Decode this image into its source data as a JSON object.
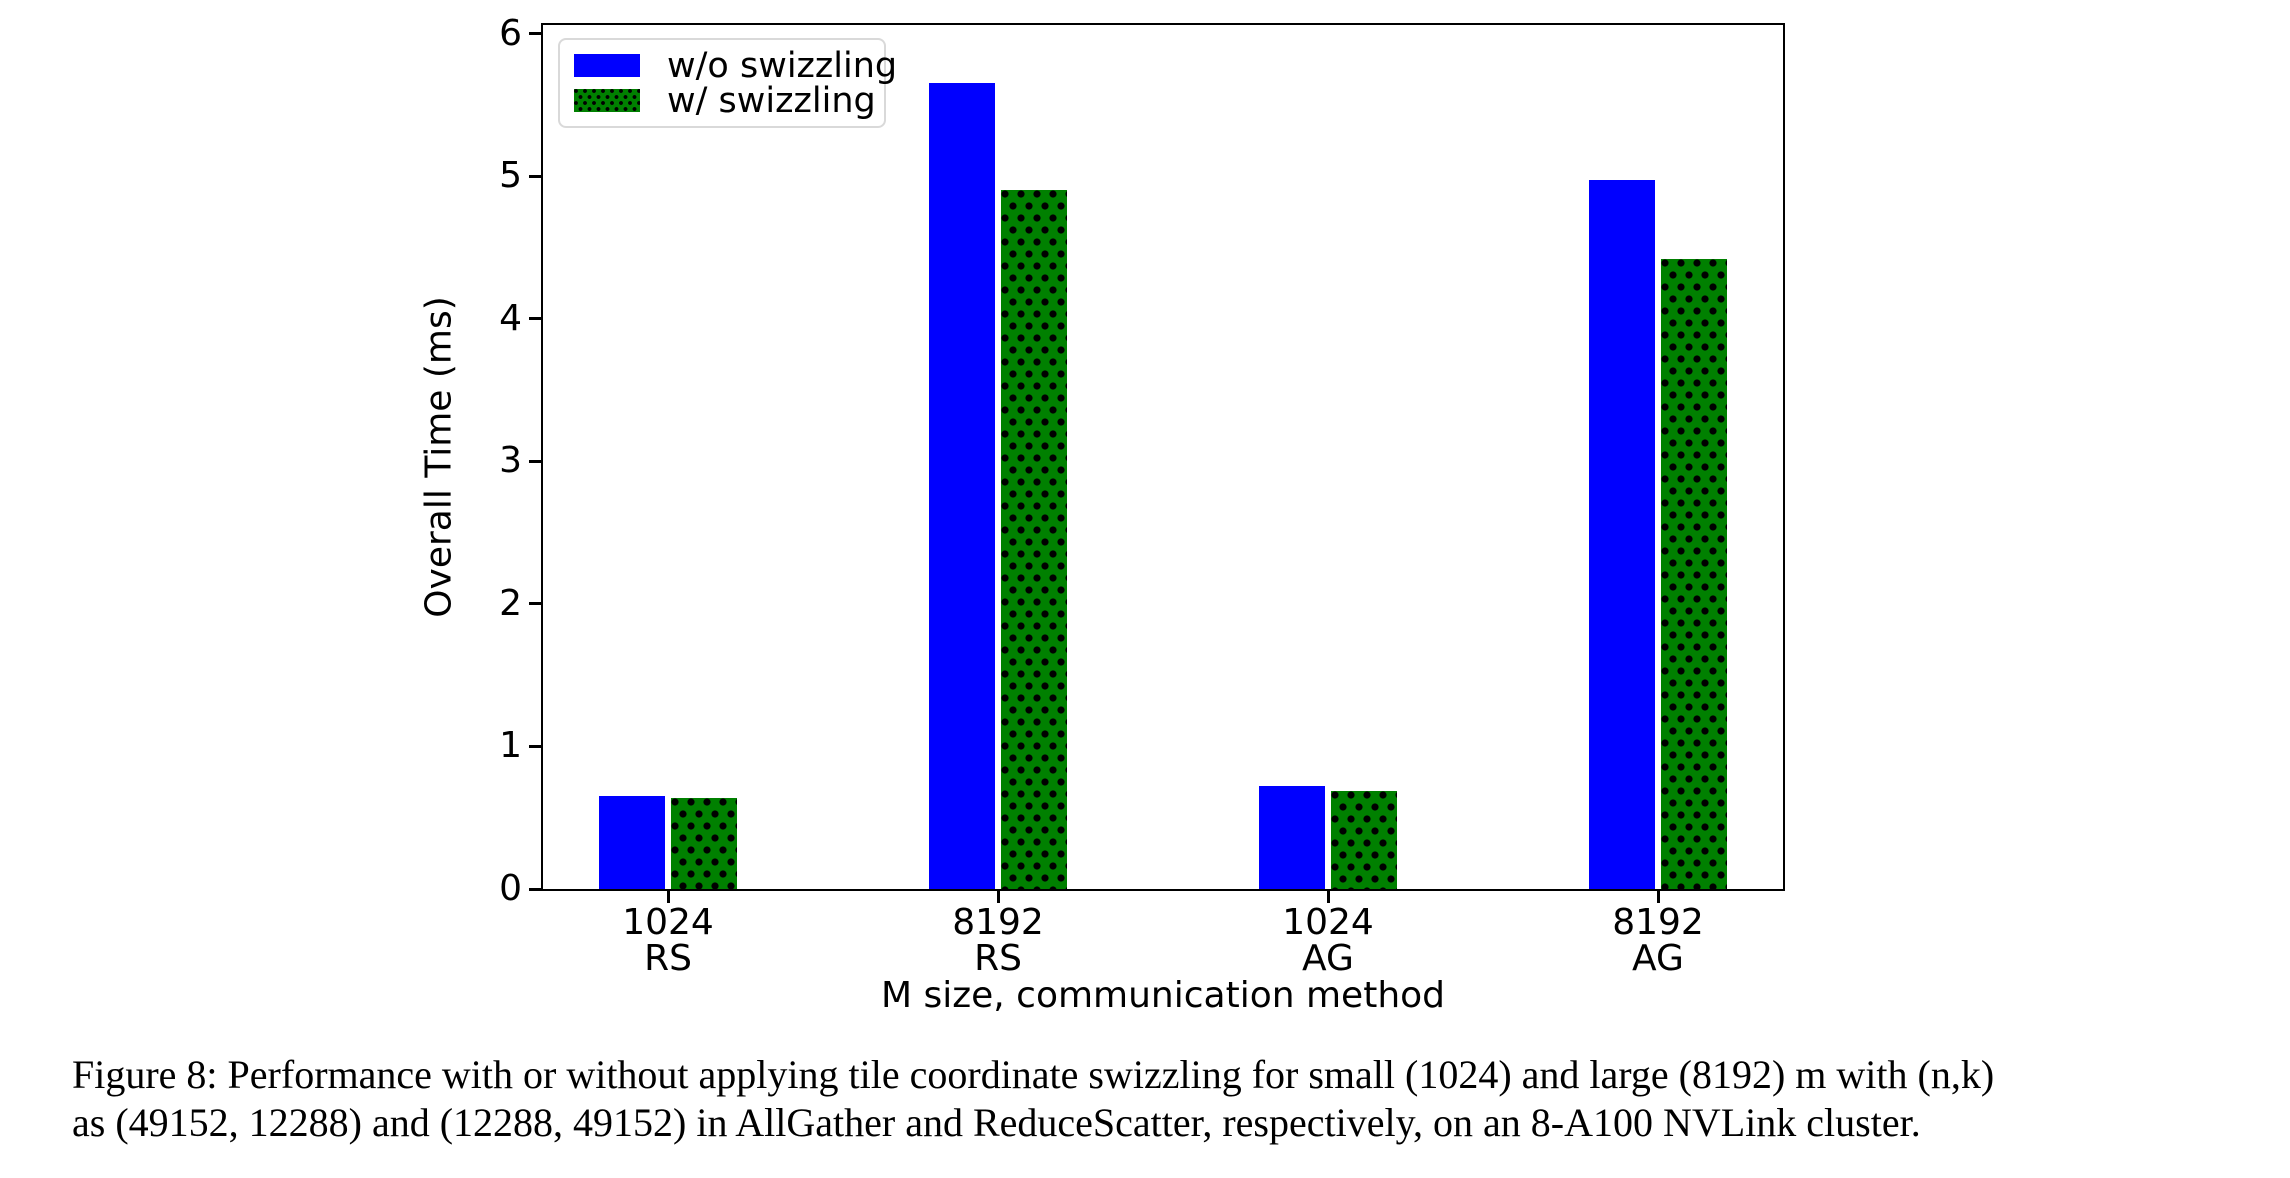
{
  "chart_data": {
    "type": "bar",
    "title": "",
    "xlabel": "M size, communication method",
    "ylabel": "Overall Time (ms)",
    "ylim": [
      0,
      6.06
    ],
    "yticks": [
      0,
      1,
      2,
      3,
      4,
      5,
      6
    ],
    "grid": false,
    "legend_position": "upper left",
    "categories": [
      "1024 RS",
      "8192 RS",
      "1024 AG",
      "8192 AG"
    ],
    "category_lines": [
      [
        "1024",
        "RS"
      ],
      [
        "8192",
        "RS"
      ],
      [
        "1024",
        "AG"
      ],
      [
        "8192",
        "AG"
      ]
    ],
    "series": [
      {
        "name": "w/o swizzling",
        "color": "#0000ff",
        "hatch": "none",
        "values": [
          0.65,
          5.65,
          0.72,
          4.97
        ]
      },
      {
        "name": "w/ swizzling",
        "color": "#008000",
        "hatch": "dots",
        "values": [
          0.64,
          4.9,
          0.69,
          4.42
        ]
      }
    ]
  },
  "caption": {
    "line1": "Figure 8: Performance with or without applying tile coordinate swizzling for small (1024) and large (8192) m with (n,k)",
    "line2": "as (49152, 12288) and (12288, 49152) in AllGather and ReduceScatter, respectively, on an 8-A100 NVLink cluster."
  }
}
